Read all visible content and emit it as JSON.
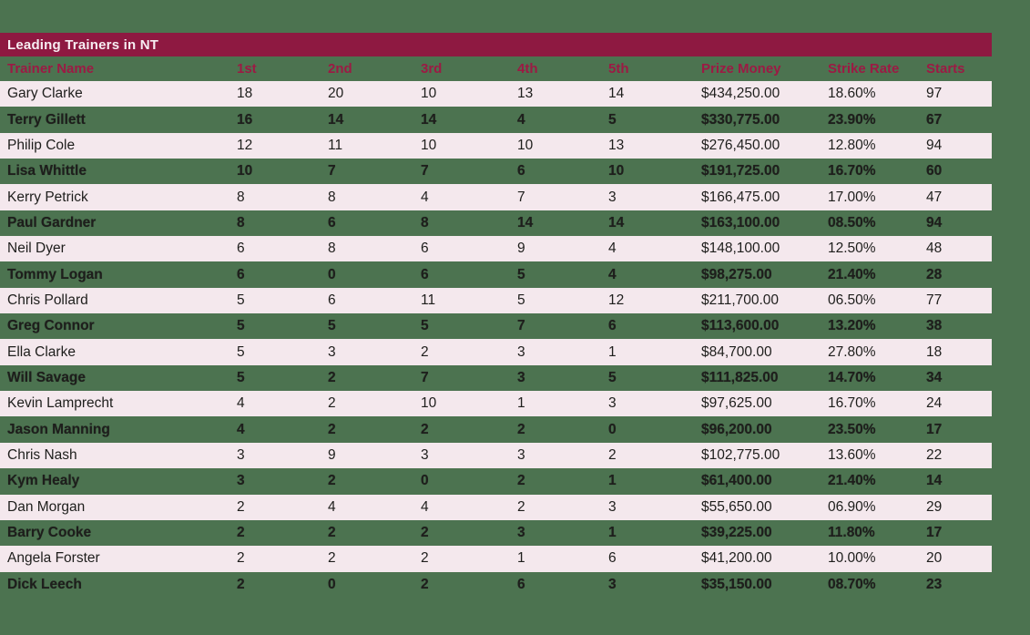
{
  "title": "Leading Trainers in NT",
  "colors": {
    "background": "#4C7350",
    "title_bar": "#8E1941",
    "header_text": "#9C1A44",
    "row_stripe": "#F4E8ED",
    "cell_text": "#1E1E1C",
    "title_text": "#F7EDF2"
  },
  "table": {
    "columns": [
      "Trainer Name",
      "1st",
      "2nd",
      "3rd",
      "4th",
      "5th",
      "Prize Money",
      "Strike Rate",
      "Starts"
    ],
    "rows": [
      [
        "Gary Clarke",
        "18",
        "20",
        "10",
        "13",
        "14",
        "$434,250.00",
        "18.60%",
        "97"
      ],
      [
        "Terry Gillett",
        "16",
        "14",
        "14",
        "4",
        "5",
        "$330,775.00",
        "23.90%",
        "67"
      ],
      [
        "Philip Cole",
        "12",
        "11",
        "10",
        "10",
        "13",
        "$276,450.00",
        "12.80%",
        "94"
      ],
      [
        "Lisa Whittle",
        "10",
        "7",
        "7",
        "6",
        "10",
        "$191,725.00",
        "16.70%",
        "60"
      ],
      [
        "Kerry Petrick",
        "8",
        "8",
        "4",
        "7",
        "3",
        "$166,475.00",
        "17.00%",
        "47"
      ],
      [
        "Paul Gardner",
        "8",
        "6",
        "8",
        "14",
        "14",
        "$163,100.00",
        "08.50%",
        "94"
      ],
      [
        "Neil Dyer",
        "6",
        "8",
        "6",
        "9",
        "4",
        "$148,100.00",
        "12.50%",
        "48"
      ],
      [
        "Tommy Logan",
        "6",
        "0",
        "6",
        "5",
        "4",
        "$98,275.00",
        "21.40%",
        "28"
      ],
      [
        "Chris Pollard",
        "5",
        "6",
        "11",
        "5",
        "12",
        "$211,700.00",
        "06.50%",
        "77"
      ],
      [
        "Greg Connor",
        "5",
        "5",
        "5",
        "7",
        "6",
        "$113,600.00",
        "13.20%",
        "38"
      ],
      [
        "Ella Clarke",
        "5",
        "3",
        "2",
        "3",
        "1",
        "$84,700.00",
        "27.80%",
        "18"
      ],
      [
        "Will Savage",
        "5",
        "2",
        "7",
        "3",
        "5",
        "$111,825.00",
        "14.70%",
        "34"
      ],
      [
        "Kevin Lamprecht",
        "4",
        "2",
        "10",
        "1",
        "3",
        "$97,625.00",
        "16.70%",
        "24"
      ],
      [
        "Jason Manning",
        "4",
        "2",
        "2",
        "2",
        "0",
        "$96,200.00",
        "23.50%",
        "17"
      ],
      [
        "Chris Nash",
        "3",
        "9",
        "3",
        "3",
        "2",
        "$102,775.00",
        "13.60%",
        "22"
      ],
      [
        "Kym Healy",
        "3",
        "2",
        "0",
        "2",
        "1",
        "$61,400.00",
        "21.40%",
        "14"
      ],
      [
        "Dan Morgan",
        "2",
        "4",
        "4",
        "2",
        "3",
        "$55,650.00",
        "06.90%",
        "29"
      ],
      [
        "Barry Cooke",
        "2",
        "2",
        "2",
        "3",
        "1",
        "$39,225.00",
        "11.80%",
        "17"
      ],
      [
        "Angela Forster",
        "2",
        "2",
        "2",
        "1",
        "6",
        "$41,200.00",
        "10.00%",
        "20"
      ],
      [
        "Dick Leech",
        "2",
        "0",
        "2",
        "6",
        "3",
        "$35,150.00",
        "08.70%",
        "23"
      ]
    ]
  }
}
